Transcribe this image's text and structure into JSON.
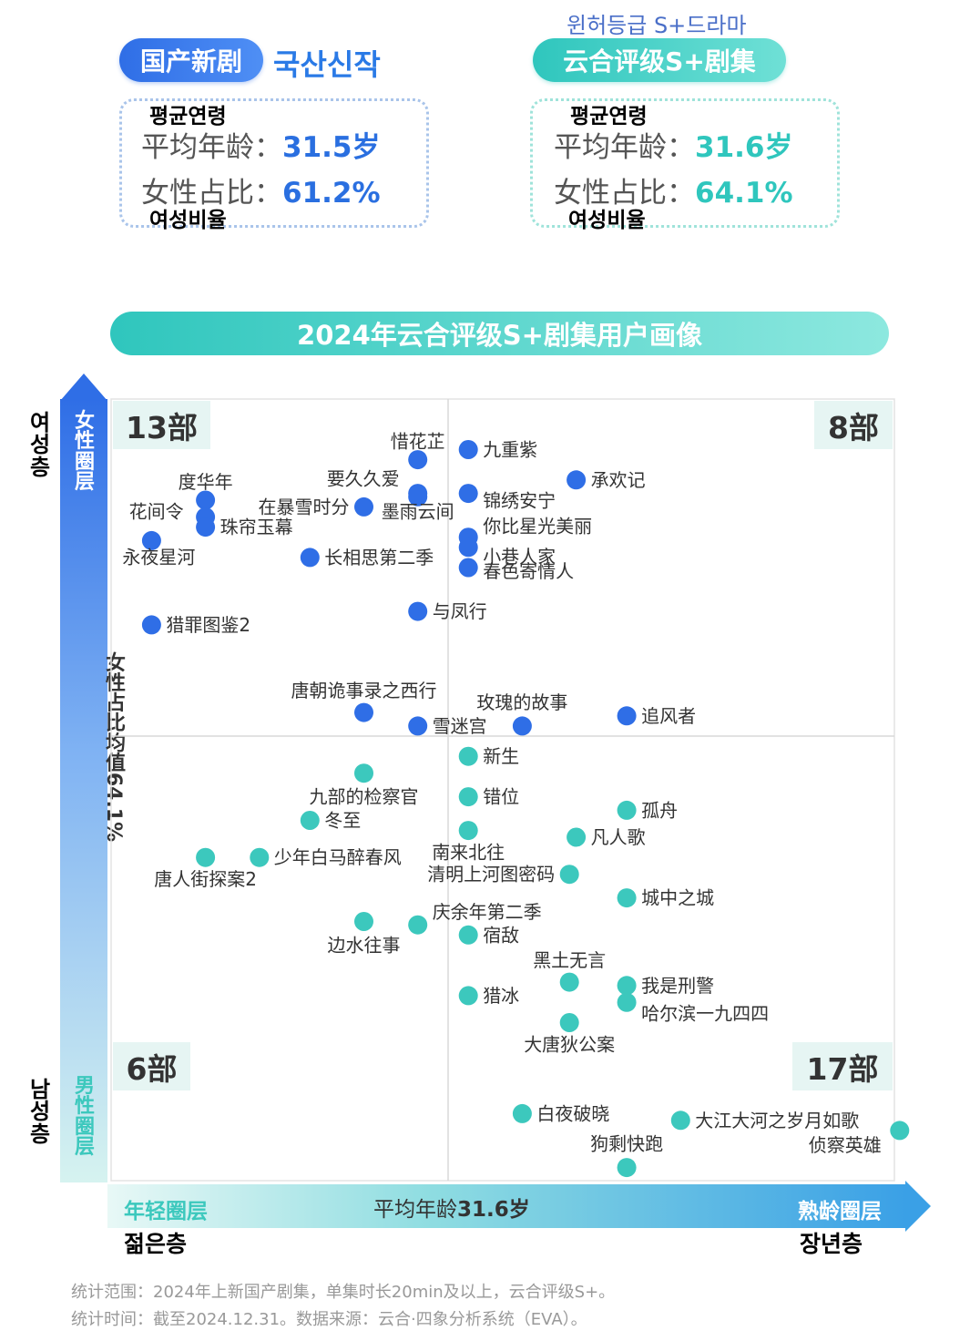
{
  "header": {
    "left_pill": "国产新剧",
    "left_korean_title": "국산신작",
    "right_korean_title": "윈허등급 S+드라마",
    "right_pill": "云合评级S+剧集"
  },
  "stats_left": {
    "age_korean": "평균연령",
    "age_label": "平均年龄：",
    "age_value": "31.5岁",
    "female_label": "女性占比：",
    "female_value": "61.2%",
    "female_korean": "여성비율",
    "accent_color": "#2a6fe0"
  },
  "stats_right": {
    "age_korean": "평균연령",
    "age_label": "平均年龄：",
    "age_value": "31.6岁",
    "female_label": "女性占比：",
    "female_value": "64.1%",
    "female_korean": "여성비율",
    "accent_color": "#2fc6bd"
  },
  "axes": {
    "y_top_label": "女性圈层",
    "y_bottom_label": "男性圈层",
    "y_mid_label": "女性占比均值64.1%",
    "y_top_korean": "여성층",
    "y_bottom_korean": "남성층",
    "x_left_label": "年轻圈层",
    "x_mid_prefix": "平均年龄",
    "x_mid_value": "31.6岁",
    "x_right_label": "熟龄圈层",
    "x_left_korean": "젊은층",
    "x_right_korean": "장년층"
  },
  "quadrants": {
    "top_left": "13部",
    "top_right": "8部",
    "bottom_left": "6部",
    "bottom_right": "17部"
  },
  "footnotes": [
    "统计范围：2024年上新国产剧集，单集时长20min及以上，云合评级S+。",
    "统计时间：截至2024.12.31。数据来源：云合·四象分析系统（EVA）。"
  ],
  "chart_data": {
    "type": "scatter",
    "title": "2024年云合评级S+剧集用户画像",
    "x_meaning": "平均年龄",
    "y_meaning": "女性占比",
    "x_center": 31.6,
    "y_center": 64.1,
    "axis_ticks": "none",
    "colors": {
      "female_group": "#2f6ee6",
      "male_group": "#3cc8bd"
    },
    "series": [
      {
        "group": "female_group",
        "points": [
          {
            "name": "惜花芷",
            "dx": -0.09,
            "dy": 0.82
          },
          {
            "name": "九重紫",
            "dx": 0.06,
            "dy": 0.85
          },
          {
            "name": "承欢记",
            "dx": 0.38,
            "dy": 0.76
          },
          {
            "name": "要久久爱",
            "dx": -0.09,
            "dy": 0.71
          },
          {
            "name": "度华年",
            "dx": -0.72,
            "dy": 0.7
          },
          {
            "name": "在暴雪时分",
            "dx": -0.25,
            "dy": 0.68
          },
          {
            "name": "锦绣安宁",
            "dx": 0.06,
            "dy": 0.72
          },
          {
            "name": "墨雨云间",
            "dx": -0.09,
            "dy": 0.72
          },
          {
            "name": "花间令",
            "dx": -0.72,
            "dy": 0.65
          },
          {
            "name": "珠帘玉幕",
            "dx": -0.72,
            "dy": 0.62
          },
          {
            "name": "永夜星河",
            "dx": -0.88,
            "dy": 0.58
          },
          {
            "name": "你比星光美丽",
            "dx": 0.06,
            "dy": 0.59
          },
          {
            "name": "小巷人家",
            "dx": 0.06,
            "dy": 0.56
          },
          {
            "name": "长相思第二季",
            "dx": -0.41,
            "dy": 0.53
          },
          {
            "name": "春色寄情人",
            "dx": 0.06,
            "dy": 0.5
          },
          {
            "name": "与凤行",
            "dx": -0.09,
            "dy": 0.37
          },
          {
            "name": "猎罪图鉴2",
            "dx": -0.88,
            "dy": 0.33
          },
          {
            "name": "唐朝诡事录之西行",
            "dx": -0.25,
            "dy": 0.07
          },
          {
            "name": "追风者",
            "dx": 0.53,
            "dy": 0.06
          },
          {
            "name": "雪迷宫",
            "dx": -0.09,
            "dy": 0.03
          },
          {
            "name": "玫瑰的故事",
            "dx": 0.22,
            "dy": 0.03
          }
        ]
      },
      {
        "group": "male_group",
        "points": [
          {
            "name": "新生",
            "dx": 0.06,
            "dy": -0.06
          },
          {
            "name": "九部的检察官",
            "dx": -0.25,
            "dy": -0.11
          },
          {
            "name": "错位",
            "dx": 0.06,
            "dy": -0.18
          },
          {
            "name": "孤舟",
            "dx": 0.53,
            "dy": -0.22
          },
          {
            "name": "冬至",
            "dx": -0.41,
            "dy": -0.25
          },
          {
            "name": "南来北往",
            "dx": 0.06,
            "dy": -0.28
          },
          {
            "name": "凡人歌",
            "dx": 0.38,
            "dy": -0.3
          },
          {
            "name": "唐人街探案2",
            "dx": -0.72,
            "dy": -0.36
          },
          {
            "name": "少年白马醉春风",
            "dx": -0.56,
            "dy": -0.36
          },
          {
            "name": "清明上河图密码",
            "dx": 0.36,
            "dy": -0.41
          },
          {
            "name": "城中之城",
            "dx": 0.53,
            "dy": -0.48
          },
          {
            "name": "庆余年第二季",
            "dx": -0.09,
            "dy": -0.56
          },
          {
            "name": "边水往事",
            "dx": -0.25,
            "dy": -0.55
          },
          {
            "name": "宿敌",
            "dx": 0.06,
            "dy": -0.59
          },
          {
            "name": "黑土无言",
            "dx": 0.36,
            "dy": -0.73
          },
          {
            "name": "我是刑警",
            "dx": 0.53,
            "dy": -0.74
          },
          {
            "name": "猎冰",
            "dx": 0.06,
            "dy": -0.77
          },
          {
            "name": "哈尔滨一九四四",
            "dx": 0.53,
            "dy": -0.79
          },
          {
            "name": "大唐狄公案",
            "dx": 0.36,
            "dy": -0.85
          },
          {
            "name": "白夜破晓",
            "dx": 0.22,
            "dy": -1.12
          },
          {
            "name": "大江大河之岁月如歌",
            "dx": 0.69,
            "dy": -1.14
          },
          {
            "name": "侦察英雄",
            "dx": 1.34,
            "dy": -1.17
          },
          {
            "name": "狗剩快跑",
            "dx": 0.53,
            "dy": -1.28
          }
        ]
      }
    ]
  }
}
